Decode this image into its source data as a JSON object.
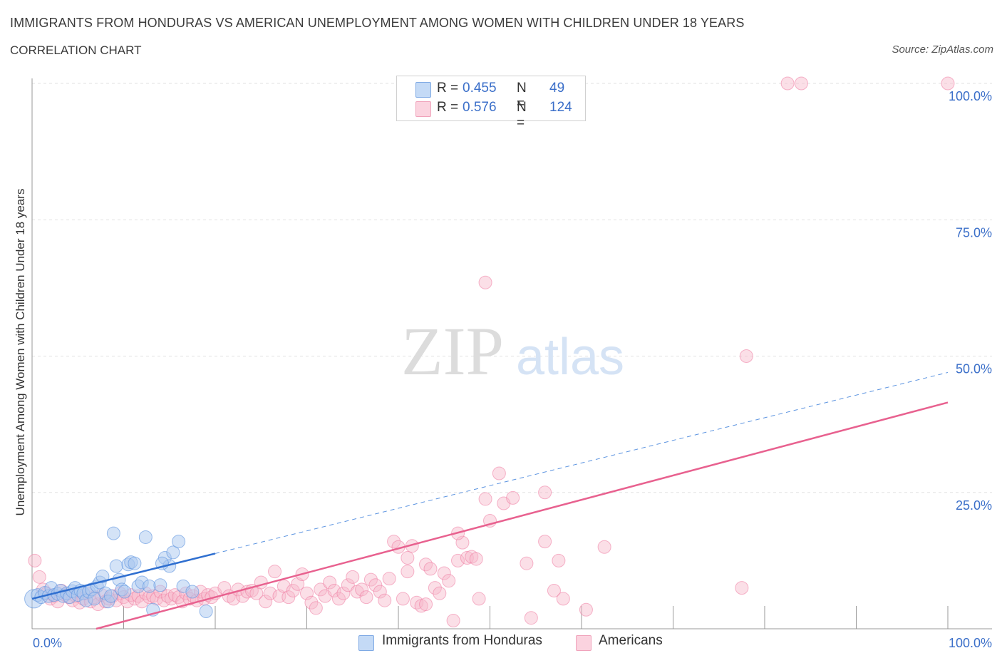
{
  "title": "IMMIGRANTS FROM HONDURAS VS AMERICAN UNEMPLOYMENT AMONG WOMEN WITH CHILDREN UNDER 18 YEARS",
  "subtitle": "CORRELATION CHART",
  "source": "Source: ZipAtlas.com",
  "watermark": {
    "zip": "ZIP",
    "atlas": "atlas"
  },
  "legend": {
    "rows": [
      {
        "r_label": "R =",
        "r_value": "0.455",
        "n_label": "N =",
        "n_value": "49",
        "color": "#aac8f0"
      },
      {
        "r_label": "R =",
        "r_value": "0.576",
        "n_label": "N =",
        "n_value": "124",
        "color": "#f6b7c9"
      }
    ]
  },
  "bottom_legend": [
    {
      "label": "Immigrants from Honduras",
      "color": "#aac8f0"
    },
    {
      "label": "Americans",
      "color": "#f6b7c9"
    }
  ],
  "chart_data": {
    "type": "scatter",
    "ylabel": "Unemployment Among Women with Children Under 18 years",
    "xlabel": "",
    "xlim": [
      0,
      100
    ],
    "ylim": [
      0,
      100
    ],
    "x_tick_labels": [
      {
        "value": 0,
        "label": "0.0%"
      },
      {
        "value": 100,
        "label": "100.0%"
      }
    ],
    "y_tick_labels": [
      {
        "value": 25,
        "label": "25.0%"
      },
      {
        "value": 50,
        "label": "50.0%"
      },
      {
        "value": 75,
        "label": "75.0%"
      },
      {
        "value": 100,
        "label": "100.0%"
      }
    ],
    "grid": true,
    "colors": {
      "honduras": "#5b93e0",
      "honduras_fill": "#aac8f0",
      "americans": "#ef7aa0",
      "americans_fill": "#f6b7c9",
      "tick_label": "#3b6fc9"
    },
    "series": [
      {
        "name": "Immigrants from Honduras",
        "points": [
          [
            0.2,
            5.5
          ],
          [
            0.6,
            6.2
          ],
          [
            1.0,
            5.8
          ],
          [
            1.4,
            6.6
          ],
          [
            1.8,
            6.0
          ],
          [
            2.1,
            7.5
          ],
          [
            2.4,
            6.2
          ],
          [
            2.8,
            6.4
          ],
          [
            3.1,
            7.0
          ],
          [
            3.4,
            6.0
          ],
          [
            3.8,
            6.5
          ],
          [
            4.1,
            5.8
          ],
          [
            4.4,
            6.9
          ],
          [
            4.7,
            7.5
          ],
          [
            5.0,
            6.2
          ],
          [
            5.3,
            7.0
          ],
          [
            5.6,
            6.5
          ],
          [
            5.9,
            5.2
          ],
          [
            6.2,
            6.8
          ],
          [
            6.5,
            7.2
          ],
          [
            6.8,
            5.5
          ],
          [
            7.1,
            7.8
          ],
          [
            7.4,
            8.5
          ],
          [
            7.7,
            9.6
          ],
          [
            8.0,
            6.5
          ],
          [
            8.3,
            5.0
          ],
          [
            8.6,
            6.0
          ],
          [
            8.9,
            17.5
          ],
          [
            9.2,
            11.5
          ],
          [
            9.5,
            9.0
          ],
          [
            9.8,
            7.2
          ],
          [
            10.1,
            6.8
          ],
          [
            10.5,
            11.8
          ],
          [
            10.8,
            12.2
          ],
          [
            11.2,
            12.0
          ],
          [
            11.6,
            7.8
          ],
          [
            12.0,
            8.5
          ],
          [
            12.4,
            16.8
          ],
          [
            12.8,
            7.8
          ],
          [
            13.2,
            3.5
          ],
          [
            14.5,
            13.0
          ],
          [
            15.0,
            11.5
          ],
          [
            15.4,
            14.0
          ],
          [
            14.2,
            12.0
          ],
          [
            14.0,
            8.0
          ],
          [
            16.5,
            7.8
          ],
          [
            17.5,
            6.8
          ],
          [
            19.0,
            3.2
          ],
          [
            16.0,
            16.0
          ]
        ],
        "trend": {
          "x0": 0,
          "y0": 5.5,
          "x1": 20,
          "y1": 13.8,
          "dash_x1": 100,
          "dash_y1": 47.0
        }
      },
      {
        "name": "Americans",
        "points": [
          [
            0.3,
            12.5
          ],
          [
            0.8,
            9.5
          ],
          [
            1.2,
            7.2
          ],
          [
            1.6,
            6.5
          ],
          [
            2.0,
            5.5
          ],
          [
            2.4,
            6.0
          ],
          [
            2.8,
            5.0
          ],
          [
            3.2,
            7.0
          ],
          [
            3.6,
            6.2
          ],
          [
            4.0,
            5.8
          ],
          [
            4.4,
            5.2
          ],
          [
            4.8,
            6.0
          ],
          [
            5.2,
            4.8
          ],
          [
            5.6,
            5.5
          ],
          [
            6.0,
            6.5
          ],
          [
            6.4,
            5.0
          ],
          [
            6.8,
            5.8
          ],
          [
            7.2,
            4.5
          ],
          [
            7.6,
            6.2
          ],
          [
            8.0,
            5.0
          ],
          [
            8.4,
            5.5
          ],
          [
            8.8,
            6.0
          ],
          [
            9.2,
            5.2
          ],
          [
            9.6,
            6.5
          ],
          [
            10.0,
            5.8
          ],
          [
            10.4,
            5.0
          ],
          [
            10.8,
            6.2
          ],
          [
            11.2,
            5.5
          ],
          [
            11.6,
            6.0
          ],
          [
            12.0,
            5.0
          ],
          [
            12.4,
            6.5
          ],
          [
            12.8,
            5.8
          ],
          [
            13.2,
            6.0
          ],
          [
            13.6,
            5.5
          ],
          [
            14.0,
            6.8
          ],
          [
            14.4,
            5.2
          ],
          [
            14.8,
            6.0
          ],
          [
            15.2,
            5.5
          ],
          [
            15.6,
            6.2
          ],
          [
            16.0,
            5.8
          ],
          [
            16.4,
            5.0
          ],
          [
            16.8,
            6.5
          ],
          [
            17.2,
            5.5
          ],
          [
            17.6,
            6.0
          ],
          [
            18.0,
            5.2
          ],
          [
            18.4,
            6.8
          ],
          [
            18.8,
            5.5
          ],
          [
            19.2,
            6.2
          ],
          [
            19.6,
            5.8
          ],
          [
            20.0,
            6.5
          ],
          [
            21.0,
            7.5
          ],
          [
            21.5,
            6.0
          ],
          [
            22.0,
            5.5
          ],
          [
            22.5,
            7.2
          ],
          [
            23.0,
            6.0
          ],
          [
            23.5,
            6.8
          ],
          [
            24.0,
            7.0
          ],
          [
            24.5,
            6.5
          ],
          [
            25.0,
            8.5
          ],
          [
            25.5,
            5.0
          ],
          [
            26.0,
            6.5
          ],
          [
            26.5,
            10.5
          ],
          [
            27.0,
            6.0
          ],
          [
            27.5,
            7.8
          ],
          [
            28.0,
            5.8
          ],
          [
            28.5,
            7.0
          ],
          [
            29.0,
            8.2
          ],
          [
            29.5,
            10.0
          ],
          [
            30.0,
            6.5
          ],
          [
            30.5,
            4.8
          ],
          [
            31.0,
            3.8
          ],
          [
            31.5,
            7.2
          ],
          [
            32.0,
            6.0
          ],
          [
            32.5,
            8.5
          ],
          [
            33.0,
            7.0
          ],
          [
            33.5,
            5.5
          ],
          [
            34.0,
            6.5
          ],
          [
            34.5,
            8.0
          ],
          [
            35.0,
            9.5
          ],
          [
            35.5,
            6.8
          ],
          [
            36.0,
            7.2
          ],
          [
            36.5,
            5.8
          ],
          [
            37.0,
            9.0
          ],
          [
            37.5,
            8.0
          ],
          [
            38.0,
            6.8
          ],
          [
            38.5,
            5.2
          ],
          [
            39.0,
            9.2
          ],
          [
            39.5,
            16.0
          ],
          [
            40.0,
            15.0
          ],
          [
            40.5,
            5.5
          ],
          [
            41.0,
            10.5
          ],
          [
            41.5,
            15.2
          ],
          [
            42.0,
            4.8
          ],
          [
            42.5,
            4.2
          ],
          [
            43.0,
            11.8
          ],
          [
            43.5,
            11.0
          ],
          [
            44.0,
            7.5
          ],
          [
            44.5,
            6.5
          ],
          [
            45.0,
            10.2
          ],
          [
            45.5,
            8.8
          ],
          [
            46.0,
            1.5
          ],
          [
            46.5,
            12.5
          ],
          [
            47.0,
            15.8
          ],
          [
            47.5,
            13.0
          ],
          [
            48.0,
            13.2
          ],
          [
            48.5,
            12.8
          ],
          [
            48.8,
            5.5
          ],
          [
            49.5,
            23.8
          ],
          [
            49.5,
            63.5
          ],
          [
            50.0,
            19.8
          ],
          [
            51.0,
            28.5
          ],
          [
            51.5,
            23.0
          ],
          [
            52.5,
            24.0
          ],
          [
            54.0,
            12.0
          ],
          [
            54.5,
            2.0
          ],
          [
            56.0,
            16.0
          ],
          [
            57.0,
            7.0
          ],
          [
            57.5,
            12.5
          ],
          [
            58.0,
            5.5
          ],
          [
            62.5,
            15.0
          ],
          [
            77.5,
            7.5
          ],
          [
            78.0,
            50.0
          ],
          [
            82.5,
            100.0
          ],
          [
            84.0,
            100.0
          ],
          [
            100.0,
            100.0
          ],
          [
            56.0,
            25.0
          ],
          [
            43.0,
            4.5
          ],
          [
            46.5,
            17.5
          ],
          [
            60.5,
            3.5
          ],
          [
            41.0,
            13.0
          ]
        ],
        "trend": {
          "x0": 7,
          "y0": 0,
          "x1": 100,
          "y1": 41.5
        }
      }
    ]
  }
}
